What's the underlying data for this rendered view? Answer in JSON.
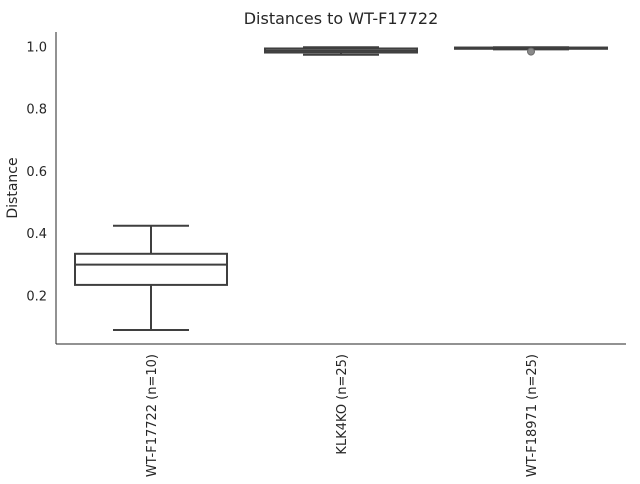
{
  "chart_data": {
    "type": "box",
    "title": "Distances to WT-F17722",
    "xlabel": "",
    "ylabel": "Distance",
    "ylim": [
      0.045,
      1.048
    ],
    "yticks": [
      0.2,
      0.4,
      0.6,
      0.8,
      1.0
    ],
    "ytick_labels": [
      "0.2",
      "0.4",
      "0.6",
      "0.8",
      "1.0"
    ],
    "grid": false,
    "categories": [
      "WT-F17722 (n=10)",
      "KLK4KO (n=25)",
      "WT-F18971 (n=25)"
    ],
    "boxes": [
      {
        "label": "WT-F17722 (n=10)",
        "whisker_low": 0.09,
        "q1": 0.235,
        "median": 0.3,
        "q3": 0.335,
        "whisker_high": 0.425,
        "outliers": []
      },
      {
        "label": "KLK4KO (n=25)",
        "whisker_low": 0.975,
        "q1": 0.982,
        "median": 0.988,
        "q3": 0.995,
        "whisker_high": 0.999,
        "outliers": []
      },
      {
        "label": "WT-F18971 (n=25)",
        "whisker_low": 0.992,
        "q1": 0.994,
        "median": 0.997,
        "q3": 0.998,
        "whisker_high": 0.999,
        "outliers": [
          0.985
        ]
      }
    ],
    "colors": {
      "box_fill": "#ffffff",
      "box_edge": "#3f3f3f",
      "outlier": "#8a8a8a",
      "axis": "#262626"
    }
  }
}
